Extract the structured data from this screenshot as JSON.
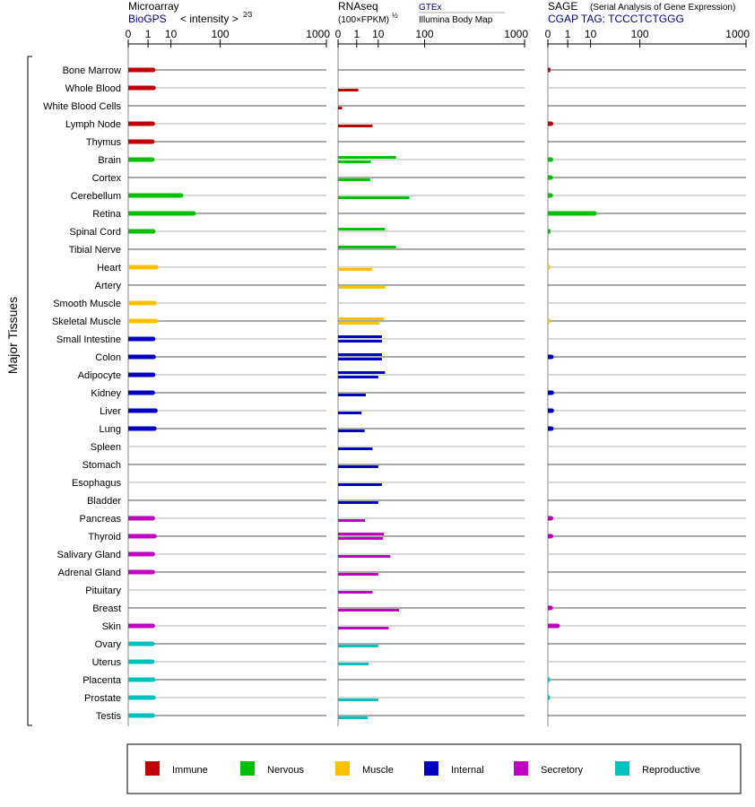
{
  "panels": [
    {
      "title": "Microarray",
      "subtitle_link": "BioGPS",
      "subtitle_extra": "< intensity >",
      "subtitle_sup": "2⁄3",
      "ticks": [
        "0",
        "1",
        "10",
        "100",
        "1000"
      ]
    },
    {
      "title": "RNAseq",
      "subtitle_units": "(100×FPKM)",
      "subtitle_sup": "½",
      "source_top": "GTEx",
      "source_bottom": "Illumina Body Map",
      "ticks": [
        "0",
        "1",
        "10",
        "100",
        "1000"
      ]
    },
    {
      "title": "SAGE",
      "title_note": "(Serial Analysis of Gene Expression)",
      "subtitle_link": "CGAP TAG: TCCCTCTGGG",
      "ticks": [
        "0",
        "1",
        "10",
        "100",
        "1000"
      ]
    }
  ],
  "y_group_label": "Major Tissues",
  "legend": [
    {
      "label": "Immune",
      "color": "#c00000"
    },
    {
      "label": "Nervous",
      "color": "#00c000"
    },
    {
      "label": "Muscle",
      "color": "#ffc000"
    },
    {
      "label": "Internal",
      "color": "#0000c0"
    },
    {
      "label": "Secretory",
      "color": "#c000c0"
    },
    {
      "label": "Reproductive",
      "color": "#00c0c0"
    }
  ],
  "chart_data": {
    "type": "bar",
    "orientation": "horizontal",
    "scale": "power (tick labels 0, 1, 10, 100, 1000)",
    "categories": [
      "Bone Marrow",
      "Whole Blood",
      "White Blood Cells",
      "Lymph Node",
      "Thymus",
      "Brain",
      "Cortex",
      "Cerebellum",
      "Retina",
      "Spinal Cord",
      "Tibial Nerve",
      "Heart",
      "Artery",
      "Smooth Muscle",
      "Skeletal Muscle",
      "Small Intestine",
      "Colon",
      "Adipocyte",
      "Kidney",
      "Liver",
      "Lung",
      "Spleen",
      "Stomach",
      "Esophagus",
      "Bladder",
      "Pancreas",
      "Thyroid",
      "Salivary Gland",
      "Adrenal Gland",
      "Pituitary",
      "Breast",
      "Skin",
      "Ovary",
      "Uterus",
      "Placenta",
      "Prostate",
      "Testis"
    ],
    "groups": [
      "Immune",
      "Immune",
      "Immune",
      "Immune",
      "Immune",
      "Nervous",
      "Nervous",
      "Nervous",
      "Nervous",
      "Nervous",
      "Nervous",
      "Muscle",
      "Muscle",
      "Muscle",
      "Muscle",
      "Internal",
      "Internal",
      "Internal",
      "Internal",
      "Internal",
      "Internal",
      "Internal",
      "Internal",
      "Internal",
      "Internal",
      "Secretory",
      "Secretory",
      "Secretory",
      "Secretory",
      "Secretory",
      "Secretory",
      "Secretory",
      "Reproductive",
      "Reproductive",
      "Reproductive",
      "Reproductive",
      "Reproductive"
    ],
    "series": [
      {
        "name": "Microarray",
        "values": [
          2.0,
          2.1,
          null,
          1.9,
          1.8,
          1.8,
          null,
          19,
          36,
          2.0,
          null,
          2.8,
          null,
          2.3,
          2.7,
          2.0,
          2.1,
          2.0,
          1.9,
          2.6,
          2.3,
          null,
          null,
          null,
          null,
          1.9,
          2.3,
          1.9,
          1.9,
          null,
          null,
          1.9,
          1.8,
          1.8,
          2.0,
          2.1,
          1.9
        ]
      },
      {
        "name": "RNAseq GTEx",
        "values": [
          null,
          null,
          null,
          null,
          null,
          30,
          null,
          null,
          null,
          16,
          30,
          null,
          null,
          null,
          15,
          13,
          13,
          16,
          null,
          null,
          null,
          null,
          null,
          null,
          null,
          null,
          15,
          null,
          null,
          null,
          null,
          null,
          null,
          null,
          null,
          null,
          null
        ]
      },
      {
        "name": "RNAseq Illumina Body Map",
        "values": [
          null,
          1.3,
          0.01,
          6.3,
          null,
          5.4,
          5.1,
          56,
          null,
          null,
          null,
          6.0,
          16,
          null,
          11,
          13,
          13,
          10,
          3.3,
          2.0,
          2.9,
          6.3,
          10,
          13,
          10,
          3.0,
          14,
          22,
          10,
          6.3,
          35,
          20,
          10,
          4.4,
          null,
          10,
          4.1
        ]
      },
      {
        "name": "SAGE",
        "values": [
          0.002,
          null,
          null,
          0.004,
          null,
          0.004,
          0.003,
          0.003,
          13,
          0.002,
          null,
          0.001,
          null,
          null,
          0.001,
          null,
          0.006,
          null,
          0.008,
          0.008,
          0.006,
          null,
          null,
          null,
          null,
          0.004,
          0.004,
          null,
          null,
          null,
          0.003,
          0.12,
          null,
          null,
          0.001,
          0.001,
          null
        ]
      }
    ],
    "xlim": [
      0,
      1000
    ],
    "xticks": [
      0,
      1,
      10,
      100,
      1000
    ],
    "legend_position": "bottom"
  }
}
